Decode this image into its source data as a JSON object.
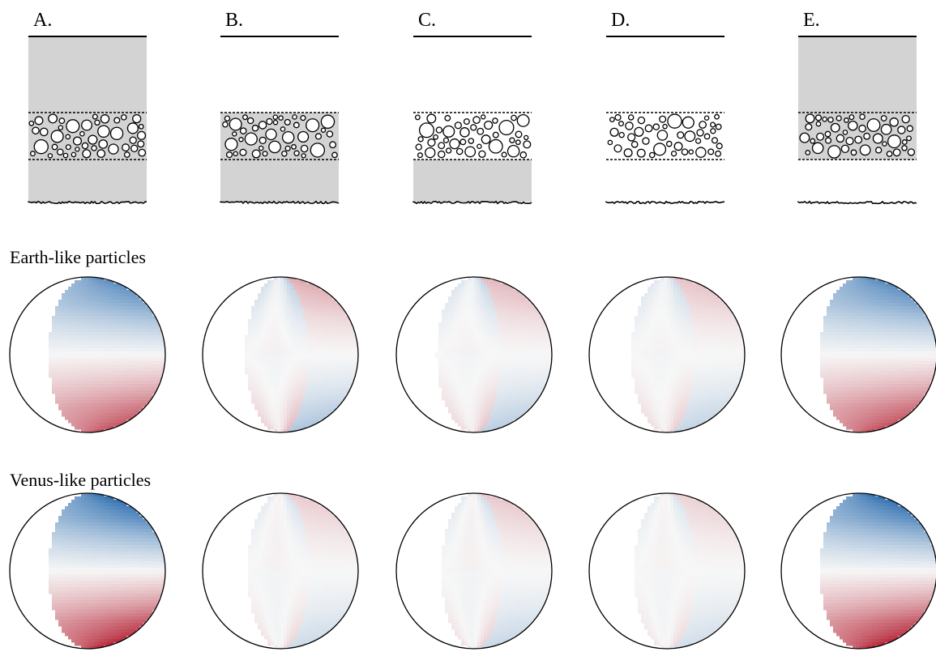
{
  "row_titles": {
    "earth": "Earth-like particles",
    "venus": "Venus-like particles"
  },
  "colors": {
    "layer_fill": "#d3d3d3",
    "positive": "#b2182b",
    "negative": "#2166ac",
    "neutral": "#f7f7f7",
    "outline": "#000000"
  },
  "panels": [
    {
      "label": "A.",
      "upper_layer": true,
      "cloud_layer_shaded": true,
      "lower_layer": true,
      "earth_disk": {
        "intensity": 0.78,
        "phase_edge": 0.5,
        "inner_contrast": 0.0
      },
      "venus_disk": {
        "intensity": 1.0,
        "phase_edge": 0.5,
        "inner_contrast": 0.0
      }
    },
    {
      "label": "B.",
      "upper_layer": false,
      "cloud_layer_shaded": true,
      "lower_layer": true,
      "earth_disk": {
        "intensity": 0.32,
        "phase_edge": 0.45,
        "inner_contrast": 0.55
      },
      "venus_disk": {
        "intensity": 0.18,
        "phase_edge": 0.42,
        "inner_contrast": 0.75
      }
    },
    {
      "label": "C.",
      "upper_layer": false,
      "cloud_layer_shaded": false,
      "lower_layer": true,
      "earth_disk": {
        "intensity": 0.26,
        "phase_edge": 0.48,
        "inner_contrast": 0.55
      },
      "venus_disk": {
        "intensity": 0.2,
        "phase_edge": 0.42,
        "inner_contrast": 0.75
      }
    },
    {
      "label": "D.",
      "upper_layer": false,
      "cloud_layer_shaded": false,
      "lower_layer": false,
      "earth_disk": {
        "intensity": 0.22,
        "phase_edge": 0.46,
        "inner_contrast": 0.55
      },
      "venus_disk": {
        "intensity": 0.16,
        "phase_edge": 0.42,
        "inner_contrast": 0.75
      }
    },
    {
      "label": "E.",
      "upper_layer": true,
      "cloud_layer_shaded": true,
      "lower_layer": false,
      "earth_disk": {
        "intensity": 0.8,
        "phase_edge": 0.5,
        "inner_contrast": 0.0
      },
      "venus_disk": {
        "intensity": 1.0,
        "phase_edge": 0.5,
        "inner_contrast": 0.0
      }
    }
  ]
}
